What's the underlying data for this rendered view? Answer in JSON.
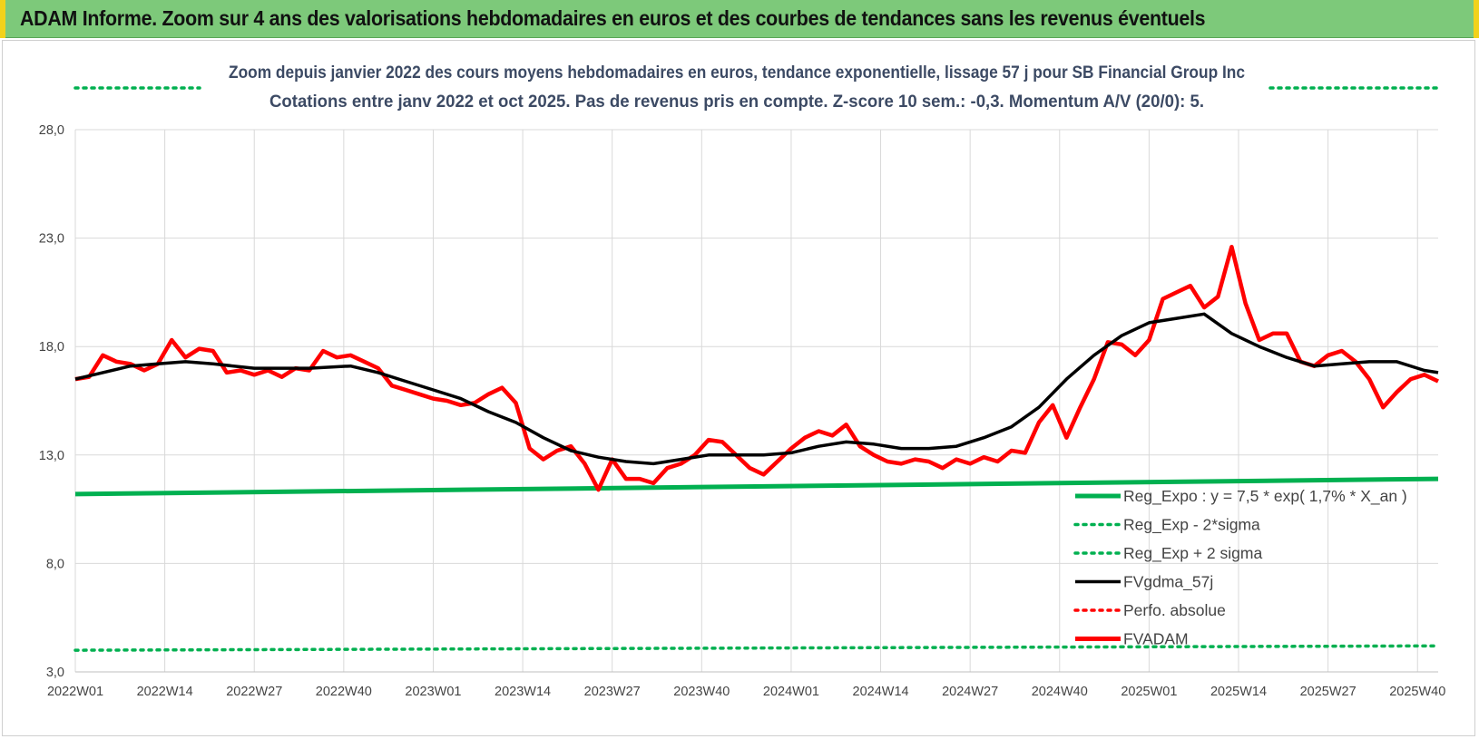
{
  "header": {
    "title": "ADAM Informe. Zoom sur 4 ans des valorisations hebdomadaires en euros et des courbes de tendances sans les revenus éventuels"
  },
  "chart_data": {
    "type": "line",
    "title_line1": "Zoom depuis janvier 2022 des cours moyens hebdomadaires en euros, tendance exponentielle, lissage 57 j pour SB Financial Group Inc",
    "title_line2": "Cotations entre janv 2022 et oct 2025. Pas de revenus pris en compte. Z-score 10 sem.: -0,3.  Momentum A/V (20/0): 5.",
    "x_tick_labels": [
      "2022W01",
      "2022W14",
      "2022W27",
      "2022W40",
      "2023W01",
      "2023W14",
      "2023W27",
      "2023W40",
      "2024W01",
      "2024W14",
      "2024W27",
      "2024W40",
      "2025W01",
      "2025W14",
      "2025W27",
      "2025W40"
    ],
    "y_tick_labels": [
      "3,0",
      "8,0",
      "13,0",
      "18,0",
      "23,0",
      "28,0"
    ],
    "y_ticks": [
      3,
      8,
      13,
      18,
      23,
      28
    ],
    "ylim": [
      3,
      28
    ],
    "n_weeks": 199,
    "legend_position": "bottom-right",
    "colors": {
      "reg_expo": "#00b050",
      "sigma": "#00b050",
      "fvgdma": "#000000",
      "perfo": "#ff0000",
      "fvadam": "#ff0000",
      "grid": "#d9d9d9"
    },
    "legend": [
      {
        "key": "reg_expo",
        "label": "Reg_Expo : y = 7,5 * exp( 1,7% *  X_an )",
        "style": "solid-green"
      },
      {
        "key": "minus2",
        "label": "Reg_Exp - 2*sigma",
        "style": "dotted-green"
      },
      {
        "key": "plus2",
        "label": "Reg_Exp + 2 sigma",
        "style": "dotted-green"
      },
      {
        "key": "fvgdma",
        "label": "FVgdma_57j",
        "style": "solid-black"
      },
      {
        "key": "perfo",
        "label": "Perfo. absolue",
        "style": "dotted-red"
      },
      {
        "key": "fvadam",
        "label": "FVADAM",
        "style": "solid-red"
      }
    ],
    "series": [
      {
        "name": "Reg_Expo",
        "x": [
          0,
          198
        ],
        "values": [
          11.2,
          11.9
        ]
      },
      {
        "name": "Reg_Exp - 2*sigma",
        "x": [
          0,
          198
        ],
        "values": [
          4.0,
          4.2
        ]
      },
      {
        "name": "Reg_Exp + 2 sigma",
        "x": [
          0,
          198
        ],
        "values": [
          30.0,
          30.0
        ]
      },
      {
        "name": "FVgdma_57j",
        "x": [
          0,
          4,
          8,
          12,
          16,
          20,
          26,
          30,
          34,
          40,
          44,
          48,
          52,
          56,
          60,
          64,
          68,
          72,
          76,
          80,
          84,
          88,
          92,
          96,
          100,
          104,
          108,
          112,
          116,
          120,
          124,
          128,
          132,
          136,
          140,
          144,
          148,
          152,
          156,
          160,
          164,
          168,
          172,
          176,
          180,
          184,
          188,
          192,
          196,
          198
        ],
        "values": [
          16.5,
          16.8,
          17.1,
          17.2,
          17.3,
          17.2,
          17.0,
          17.0,
          17.0,
          17.1,
          16.8,
          16.4,
          16.0,
          15.6,
          15.0,
          14.5,
          13.8,
          13.2,
          12.9,
          12.7,
          12.6,
          12.8,
          13.0,
          13.0,
          13.0,
          13.1,
          13.4,
          13.6,
          13.5,
          13.3,
          13.3,
          13.4,
          13.8,
          14.3,
          15.2,
          16.5,
          17.6,
          18.5,
          19.1,
          19.3,
          19.5,
          18.6,
          18.0,
          17.5,
          17.1,
          17.2,
          17.3,
          17.3,
          16.9,
          16.8
        ]
      },
      {
        "name": "FVADAM",
        "x": [
          0,
          2,
          4,
          6,
          8,
          10,
          12,
          14,
          16,
          18,
          20,
          22,
          24,
          26,
          28,
          30,
          32,
          34,
          36,
          38,
          40,
          42,
          44,
          46,
          48,
          50,
          52,
          54,
          56,
          58,
          60,
          62,
          64,
          66,
          68,
          70,
          72,
          74,
          76,
          78,
          80,
          82,
          84,
          86,
          88,
          90,
          92,
          94,
          96,
          98,
          100,
          102,
          104,
          106,
          108,
          110,
          112,
          114,
          116,
          118,
          120,
          122,
          124,
          126,
          128,
          130,
          132,
          134,
          136,
          138,
          140,
          142,
          144,
          146,
          148,
          150,
          152,
          154,
          156,
          158,
          160,
          162,
          164,
          166,
          168,
          170,
          172,
          174,
          176,
          178,
          180,
          182,
          184,
          186,
          188,
          190,
          192,
          194,
          196,
          198
        ],
        "values": [
          16.5,
          16.6,
          17.6,
          17.3,
          17.2,
          16.9,
          17.2,
          18.3,
          17.5,
          17.9,
          17.8,
          16.8,
          16.9,
          16.7,
          16.9,
          16.6,
          17.0,
          16.9,
          17.8,
          17.5,
          17.6,
          17.3,
          17.0,
          16.2,
          16.0,
          15.8,
          15.6,
          15.5,
          15.3,
          15.4,
          15.8,
          16.1,
          15.4,
          13.3,
          12.8,
          13.2,
          13.4,
          12.6,
          11.4,
          12.8,
          11.9,
          11.9,
          11.7,
          12.4,
          12.6,
          13.0,
          13.7,
          13.6,
          13.0,
          12.4,
          12.1,
          12.7,
          13.3,
          13.8,
          14.1,
          13.9,
          14.4,
          13.4,
          13.0,
          12.7,
          12.6,
          12.8,
          12.7,
          12.4,
          12.8,
          12.6,
          12.9,
          12.7,
          13.2,
          13.1,
          14.5,
          15.3,
          13.8,
          15.2,
          16.5,
          18.2,
          18.1,
          17.6,
          18.3,
          20.2,
          20.5,
          20.8,
          19.8,
          20.3,
          22.6,
          20.0,
          18.3,
          18.6,
          18.6,
          17.3,
          17.1,
          17.6,
          17.8,
          17.3,
          16.5,
          15.2,
          15.9,
          16.5,
          16.7,
          16.4
        ]
      }
    ]
  }
}
